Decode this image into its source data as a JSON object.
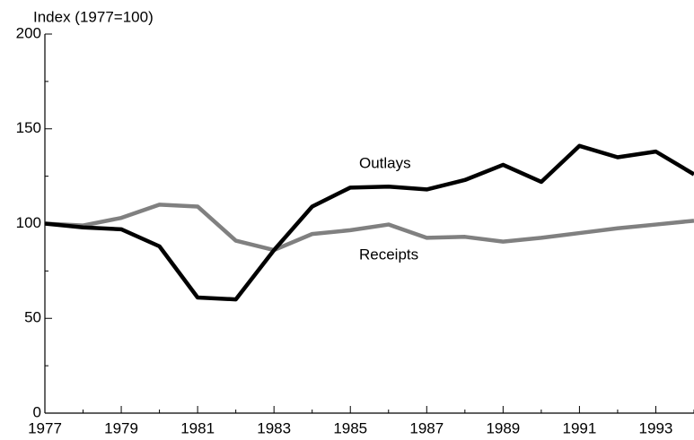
{
  "chart_data": {
    "type": "line",
    "y_label": "Index (1977=100)",
    "x": [
      1977,
      1978,
      1979,
      1980,
      1981,
      1982,
      1983,
      1984,
      1985,
      1986,
      1987,
      1988,
      1989,
      1990,
      1991,
      1992,
      1993,
      1994
    ],
    "series": [
      {
        "name": "Outlays",
        "color": "#000000",
        "values": [
          100,
          98,
          97,
          88,
          61,
          60,
          86,
          109,
          119,
          119.5,
          118,
          123,
          131,
          122,
          141,
          135,
          138,
          126
        ]
      },
      {
        "name": "Receipts",
        "color": "#808080",
        "values": [
          100,
          99,
          103,
          110,
          109,
          91,
          86,
          94.5,
          96.5,
          99.5,
          92.5,
          93,
          90.5,
          92.5,
          95,
          97.5,
          99.5,
          101.5
        ]
      }
    ],
    "xlim": [
      1977,
      1994
    ],
    "xticks": [
      1977,
      1979,
      1981,
      1983,
      1985,
      1987,
      1989,
      1991,
      1993
    ],
    "xticks_minor": [
      1978,
      1980,
      1982,
      1984,
      1986,
      1988,
      1990,
      1992,
      1994
    ],
    "ylim": [
      0,
      200
    ],
    "yticks": [
      0,
      50,
      100,
      150,
      200
    ],
    "yticks_minor": [
      25,
      75,
      125,
      175
    ],
    "grid": false
  }
}
